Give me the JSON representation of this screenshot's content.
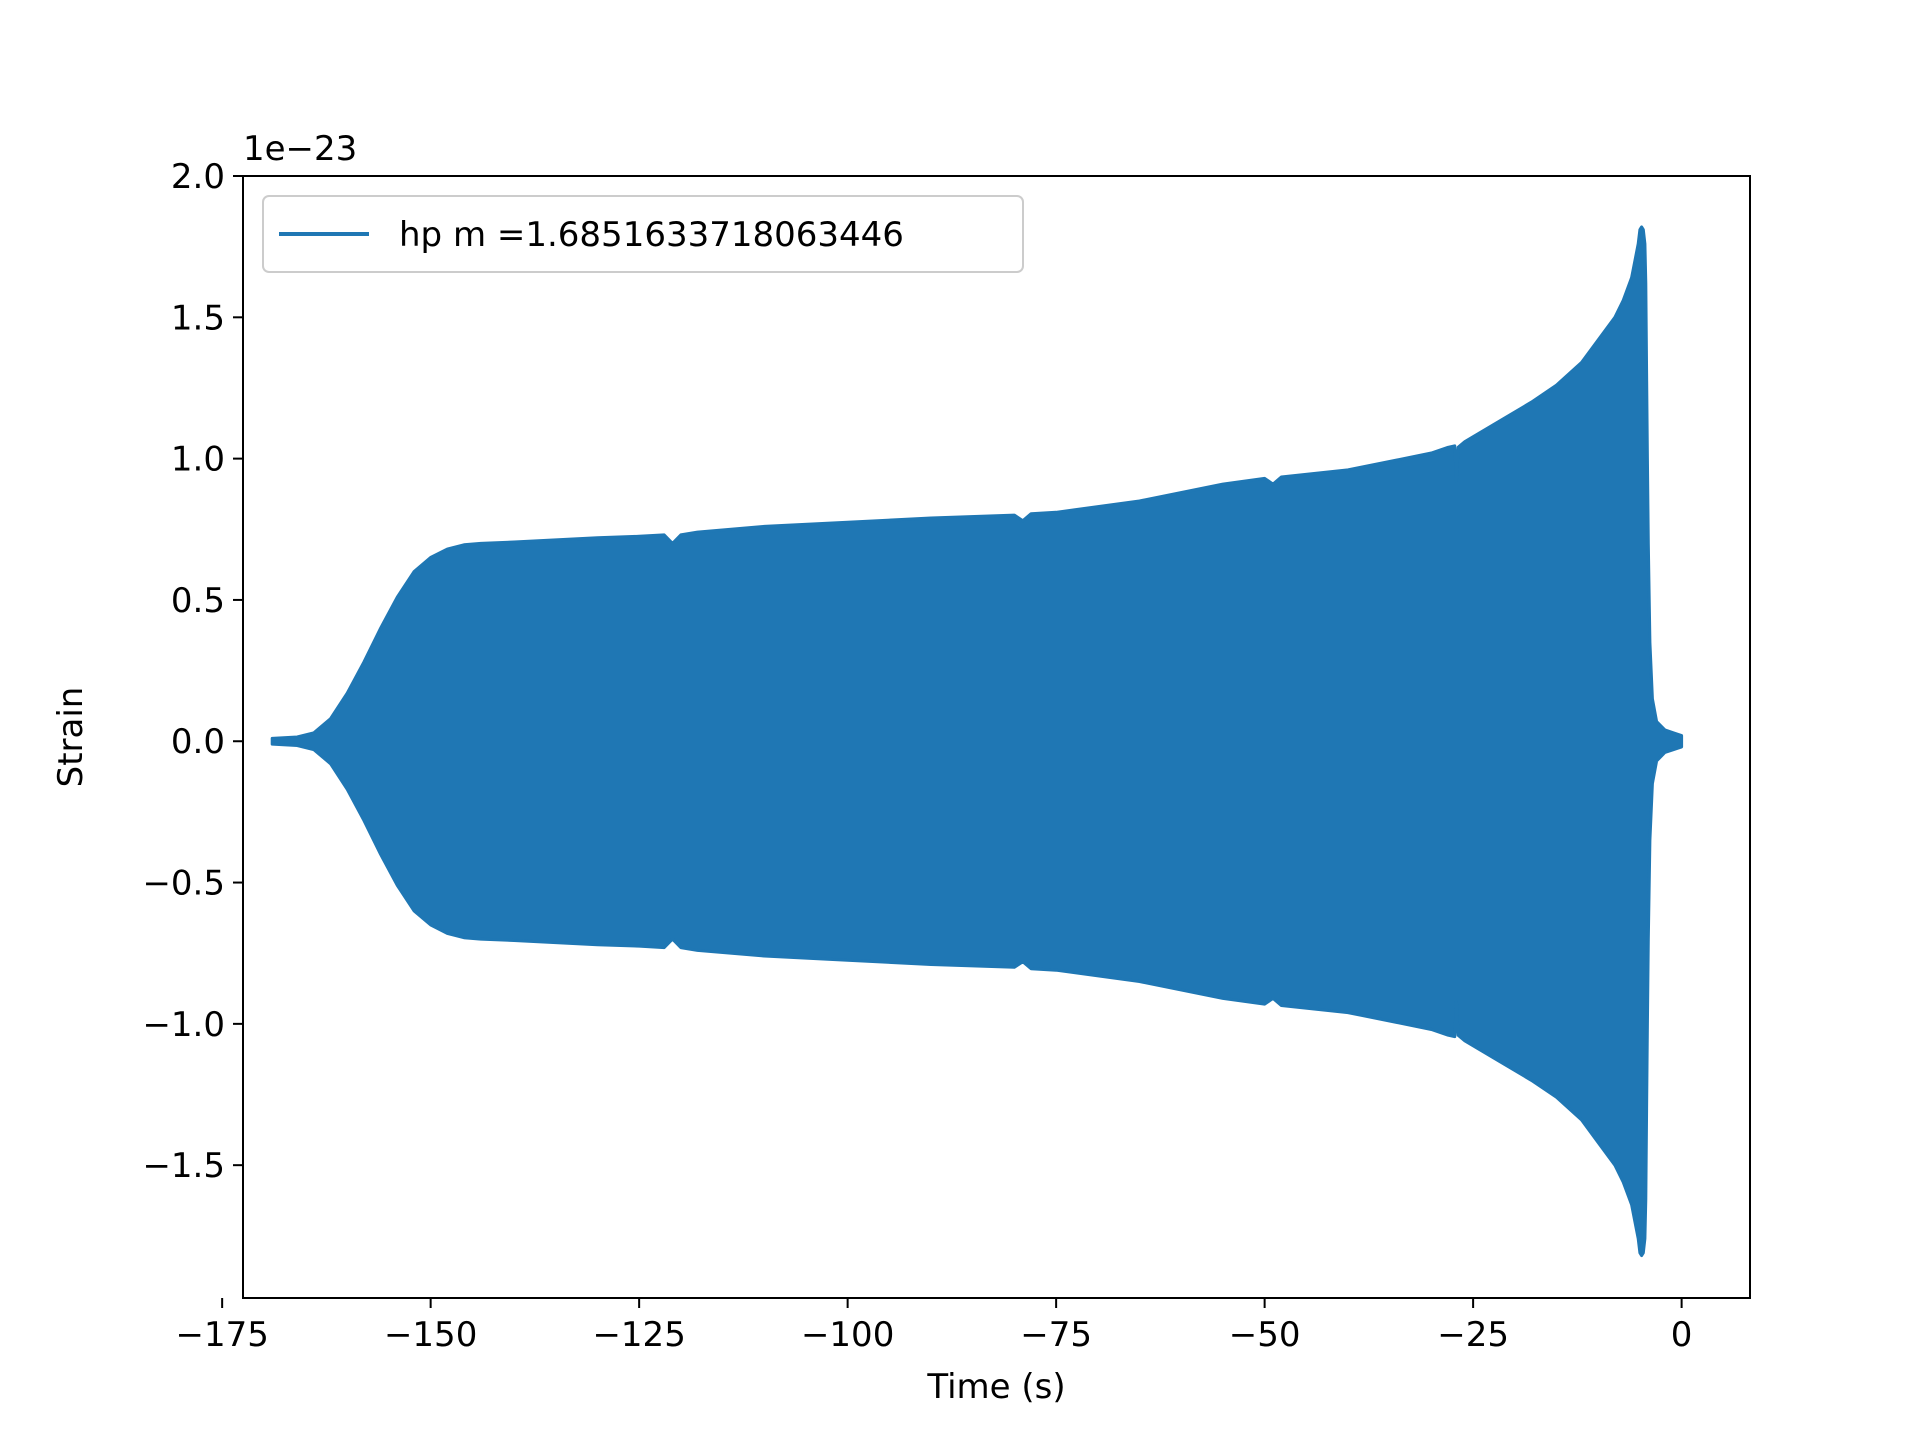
{
  "chart_data": {
    "type": "line",
    "xlabel": "Time (s)",
    "ylabel": "Strain",
    "y_scale_label": "1e−23",
    "y_multiplier": 1e-23,
    "xlim": [
      -172.5,
      8.2
    ],
    "ylim": [
      -1.97,
      2.0
    ],
    "x_ticks": [
      -175,
      -150,
      -125,
      -100,
      -75,
      -50,
      -25,
      0
    ],
    "x_tick_labels": [
      "−175",
      "−150",
      "−125",
      "−100",
      "−75",
      "−50",
      "−25",
      "0"
    ],
    "y_ticks": [
      2.0,
      1.5,
      1.0,
      0.5,
      0.0,
      -0.5,
      -1.0,
      -1.5
    ],
    "y_tick_labels": [
      "2.0",
      "1.5",
      "1.0",
      "0.5",
      "0.0",
      "−0.5",
      "−1.0",
      "−1.5"
    ],
    "grid": false,
    "legend_position": "top-left",
    "series": [
      {
        "name": "hp m =1.6851633718063446",
        "color": "#1f77b4",
        "envelope": {
          "x": [
            -169,
            -166,
            -164,
            -162,
            -160,
            -158,
            -156,
            -154,
            -152,
            -150,
            -148,
            -146,
            -144,
            -140,
            -130,
            -125,
            -122,
            -121,
            -120,
            -118,
            -110,
            -100,
            -90,
            -80,
            -79,
            -78,
            -75,
            -65,
            -55,
            -50,
            -49,
            -48,
            -40,
            -30,
            -28,
            -27.2,
            -27,
            -26.8,
            -26,
            -22,
            -18,
            -15,
            -12,
            -10,
            -8,
            -7,
            -6,
            -5.6,
            -5.2,
            -5.0,
            -4.8,
            -4.6,
            -4.4,
            -4.3,
            -4.2,
            -4.1,
            -4.0,
            -3.8,
            -3.5,
            -3.0,
            -2.0,
            -1.0,
            -0.5,
            0
          ],
          "upper": [
            0.01,
            0.015,
            0.03,
            0.08,
            0.17,
            0.28,
            0.4,
            0.51,
            0.6,
            0.65,
            0.68,
            0.695,
            0.7,
            0.705,
            0.72,
            0.725,
            0.73,
            0.7,
            0.73,
            0.74,
            0.76,
            0.775,
            0.79,
            0.8,
            0.78,
            0.805,
            0.81,
            0.85,
            0.91,
            0.93,
            0.91,
            0.935,
            0.96,
            1.02,
            1.04,
            1.045,
            0.92,
            1.04,
            1.06,
            1.13,
            1.2,
            1.26,
            1.34,
            1.42,
            1.5,
            1.56,
            1.64,
            1.7,
            1.76,
            1.81,
            1.82,
            1.81,
            1.76,
            1.62,
            1.3,
            1.0,
            0.7,
            0.35,
            0.15,
            0.07,
            0.04,
            0.03,
            0.025,
            0.02
          ],
          "lower": [
            -0.01,
            -0.015,
            -0.03,
            -0.08,
            -0.17,
            -0.28,
            -0.4,
            -0.51,
            -0.6,
            -0.65,
            -0.68,
            -0.695,
            -0.7,
            -0.705,
            -0.72,
            -0.725,
            -0.73,
            -0.7,
            -0.73,
            -0.74,
            -0.76,
            -0.775,
            -0.79,
            -0.8,
            -0.78,
            -0.805,
            -0.81,
            -0.85,
            -0.91,
            -0.93,
            -0.91,
            -0.935,
            -0.96,
            -1.02,
            -1.04,
            -1.045,
            -0.92,
            -1.04,
            -1.06,
            -1.13,
            -1.2,
            -1.26,
            -1.34,
            -1.42,
            -1.5,
            -1.56,
            -1.64,
            -1.7,
            -1.76,
            -1.81,
            -1.82,
            -1.81,
            -1.76,
            -1.62,
            -1.3,
            -1.0,
            -0.7,
            -0.35,
            -0.15,
            -0.07,
            -0.04,
            -0.03,
            -0.025,
            -0.02
          ]
        }
      }
    ]
  }
}
